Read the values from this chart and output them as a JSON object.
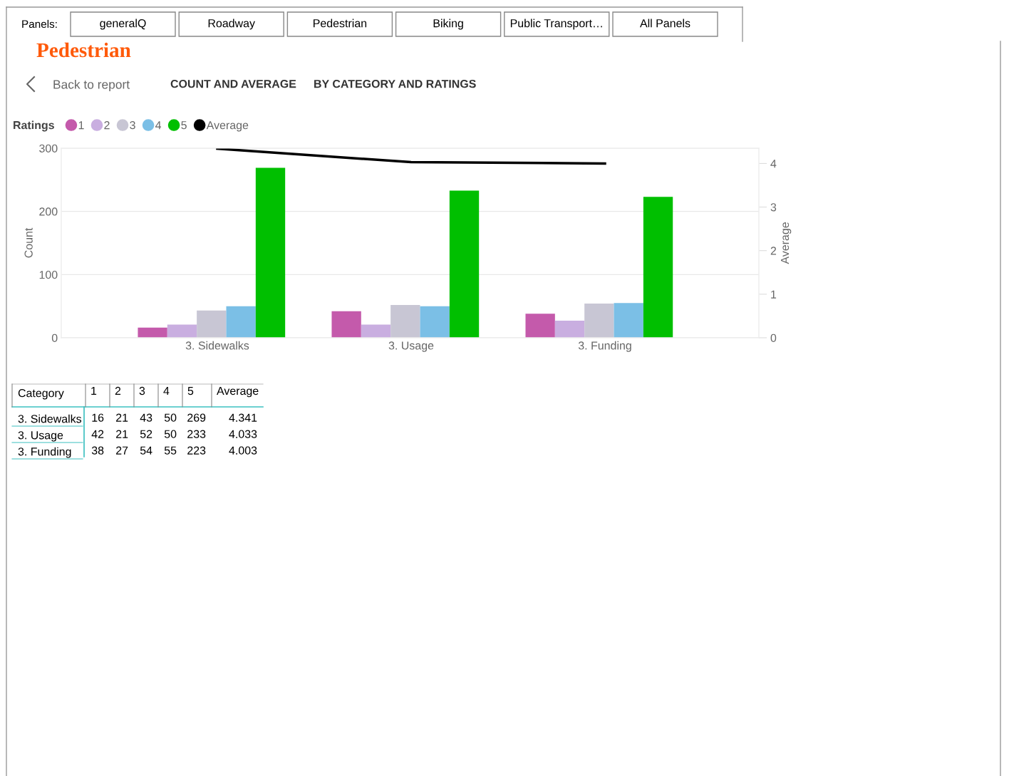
{
  "chart_data": [
    {
      "type": "bar",
      "title": "Pedestrian",
      "annotations": [
        "Panels:",
        "generalQ",
        "Roadway",
        "Pedestrian",
        "Biking",
        "Public Transport…",
        "All Panels",
        "Back to report",
        "COUNT AND AVERAGE",
        "BY CATEGORY AND RATINGS"
      ],
      "categories": [
        "3. Sidewalks",
        "3. Usage",
        "3. Funding"
      ],
      "series": [
        {
          "name": "1",
          "color": "#c45aab",
          "values": [
            16,
            42,
            38
          ]
        },
        {
          "name": "2",
          "color": "#c9aee0",
          "values": [
            21,
            21,
            27
          ]
        },
        {
          "name": "3",
          "color": "#c8c6d4",
          "values": [
            43,
            52,
            54
          ]
        },
        {
          "name": "4",
          "color": "#7bbfe6",
          "values": [
            50,
            50,
            55
          ]
        },
        {
          "name": "5",
          "color": "#00bf00",
          "values": [
            269,
            233,
            223
          ]
        },
        {
          "name": "Average",
          "type": "line",
          "axis": "y2",
          "color": "#000000",
          "values": [
            4.34,
            4.03,
            4.0
          ]
        }
      ],
      "legend_title": "Ratings",
      "legend": "top left",
      "ylabel": "Count",
      "y2label": "Average",
      "ylim": [
        0,
        300
      ],
      "yticks": [
        0,
        100,
        200,
        300
      ],
      "y2lim": [
        0,
        4.35
      ],
      "y2ticks": [
        0,
        1,
        2,
        3,
        4
      ],
      "grid": "y",
      "marker": "none",
      "line_style": "solid"
    },
    {
      "type": "heatmap",
      "annotations": [
        "Category"
      ],
      "data_labels": true,
      "categories": [
        "1",
        "2",
        "3",
        "4",
        "5",
        "Average"
      ],
      "y_categories": [
        "3. Sidewalks",
        "3. Usage",
        "3. Funding"
      ],
      "cells": [
        [
          16,
          21,
          43,
          50,
          269,
          4.341
        ],
        [
          42,
          21,
          52,
          50,
          233,
          4.033
        ],
        [
          38,
          27,
          54,
          55,
          223,
          4.003
        ]
      ]
    }
  ]
}
